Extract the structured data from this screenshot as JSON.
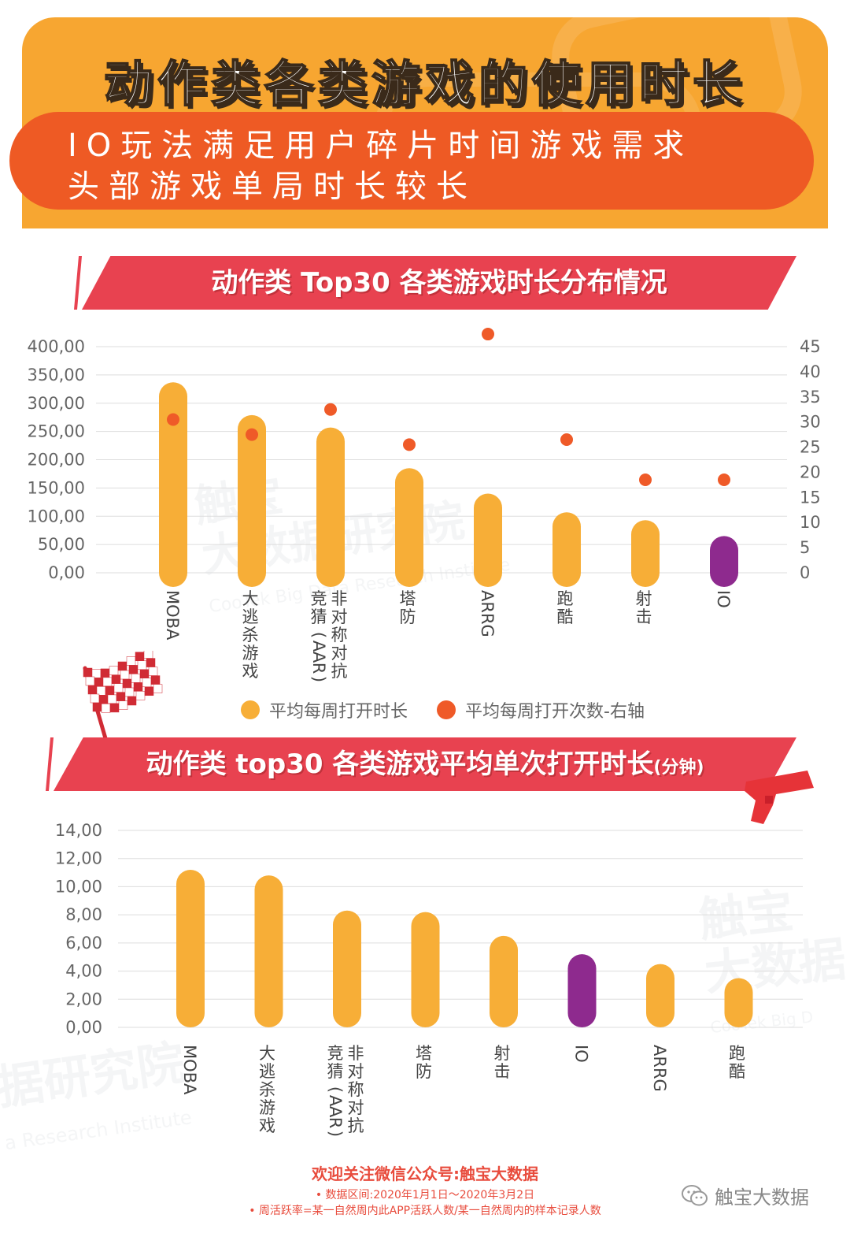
{
  "header": {
    "title": "动作类各类游戏的使用时长",
    "subtitle_line1": "IO玩法满足用户碎片时间游戏需求",
    "subtitle_line2": "头部游戏单局时长较长"
  },
  "watermark": {
    "line1": "触宝",
    "line2": "大数据研究院",
    "line3": "CooTek Big Data Research Institute",
    "partial1": "据研究院",
    "partial2": "a Research Institute",
    "right1": "触宝",
    "right2": "大数据",
    "right3": "CooTek Big D"
  },
  "chart1": {
    "banner": "动作类 Top30 各类游戏时长分布情况",
    "legend": [
      "平均每周打开时长",
      "平均每周打开次数-右轴"
    ]
  },
  "chart2": {
    "banner": "动作类 top30 各类游戏平均单次打开时长",
    "banner_unit": "(分钟)"
  },
  "chart_data": [
    {
      "type": "bar",
      "categories": [
        "MOBA",
        "大逃杀游戏",
        "竞猜(AAR)\n非对称对抗",
        "塔防",
        "ARRG",
        "跑酷",
        "射击",
        "IO"
      ],
      "series": [
        {
          "name": "平均每周打开时长",
          "type": "bar",
          "axis": "left",
          "values": [
            337,
            279,
            257,
            185,
            140,
            107,
            93,
            65
          ]
        },
        {
          "name": "平均每周打开次数-右轴",
          "type": "scatter",
          "axis": "right",
          "values": [
            30.5,
            27.5,
            32.5,
            25.5,
            47.5,
            26.5,
            18.5,
            18.5
          ]
        }
      ],
      "y_ticks": [
        "0,00",
        "50,00",
        "100,00",
        "150,00",
        "200,00",
        "250,00",
        "300,00",
        "350,00",
        "400,00"
      ],
      "y2_ticks": [
        "0",
        "5",
        "10",
        "15",
        "20",
        "25",
        "30",
        "35",
        "40",
        "45"
      ],
      "ylim": [
        0,
        400
      ],
      "y2lim": [
        0,
        45
      ],
      "grid": true,
      "legend_position": "bottom",
      "colors": {
        "bar": "#f7ae37",
        "highlight": "#8e2a8e",
        "dot": "#ef5a28"
      },
      "highlight_index": 7
    },
    {
      "type": "bar",
      "categories": [
        "MOBA",
        "大逃杀游戏",
        "竞猜(AAR)\n非对称对抗",
        "塔防",
        "射击",
        "IO",
        "ARRG",
        "跑酷"
      ],
      "values": [
        11.2,
        10.8,
        8.3,
        8.2,
        6.5,
        5.2,
        4.5,
        3.5
      ],
      "y_ticks": [
        "0,00",
        "2,00",
        "4,00",
        "6,00",
        "8,00",
        "10,00",
        "12,00",
        "14,00"
      ],
      "ylim": [
        0,
        14
      ],
      "grid": true,
      "colors": {
        "bar": "#f7ae37",
        "highlight": "#8e2a8e"
      },
      "highlight_index": 5
    }
  ],
  "footer": {
    "follow": "欢迎关注微信公众号:触宝大数据",
    "note1": "• 数据区间:2020年1月1日～2020年3月2日",
    "note2": "• 周活跃率=某一自然周内此APP活跃人数/某一自然周内的样本记录人数",
    "wechat": "触宝大数据"
  }
}
